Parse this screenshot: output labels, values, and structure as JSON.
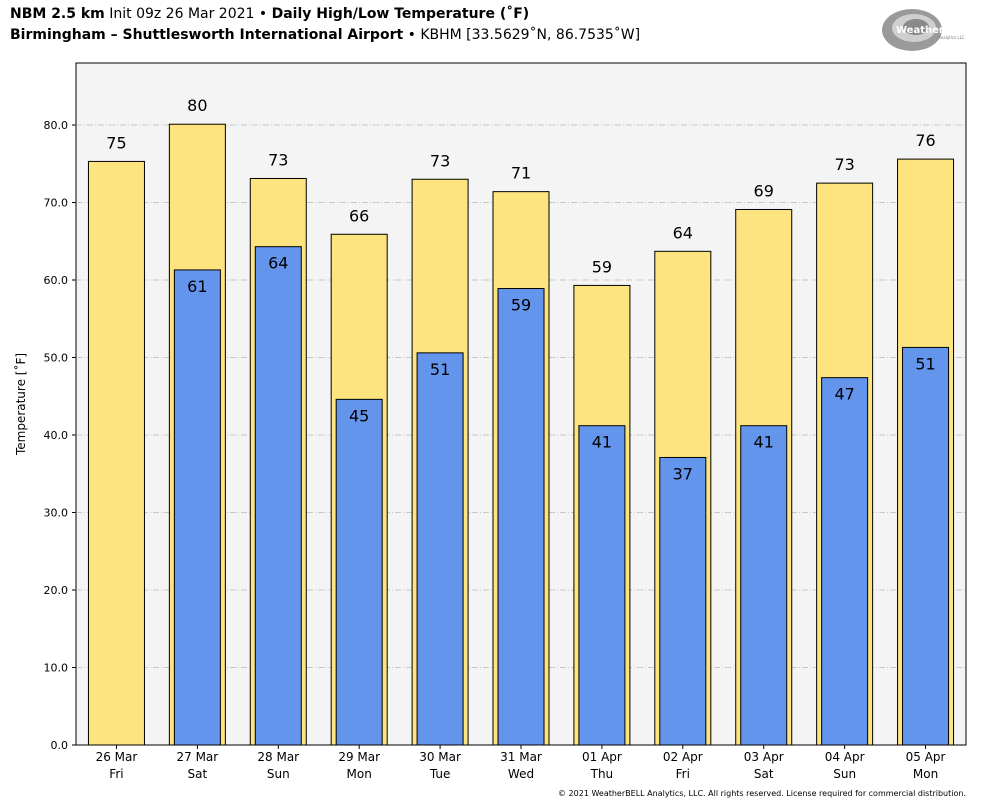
{
  "header": {
    "model": "NBM 2.5 km",
    "init": "Init 09z 26 Mar 2021",
    "sep": "•",
    "product": "Daily High/Low Temperature (˚F)",
    "location": "Birmingham – Shuttlesworth International Airport",
    "station": "KBHM [33.5629˚N, 86.7535˚W]"
  },
  "logo": {
    "text": "WeatherBELL",
    "subtext": "Analytics LLC"
  },
  "copyright": "© 2021 WeatherBELL Analytics, LLC. All rights reserved. License required for commercial distribution.",
  "colors": {
    "high": "#fde47f",
    "low": "#6495ed",
    "plot_bg": "#f4f4f4",
    "grid": "#b8b8b8"
  },
  "chart_data": {
    "type": "bar",
    "title": "Daily High/Low Temperature (˚F)",
    "ylabel": "Temperature [˚F]",
    "xlabel": "",
    "ylim": [
      0,
      88
    ],
    "yticks": [
      "0.0",
      "10.0",
      "20.0",
      "30.0",
      "40.0",
      "50.0",
      "60.0",
      "70.0",
      "80.0"
    ],
    "grid": true,
    "categories": [
      [
        "26 Mar",
        "Fri"
      ],
      [
        "27 Mar",
        "Sat"
      ],
      [
        "28 Mar",
        "Sun"
      ],
      [
        "29 Mar",
        "Mon"
      ],
      [
        "30 Mar",
        "Tue"
      ],
      [
        "31 Mar",
        "Wed"
      ],
      [
        "01 Apr",
        "Thu"
      ],
      [
        "02 Apr",
        "Fri"
      ],
      [
        "03 Apr",
        "Sat"
      ],
      [
        "04 Apr",
        "Sun"
      ],
      [
        "05 Apr",
        "Mon"
      ]
    ],
    "series": [
      {
        "key": "high",
        "values": [
          75.3,
          80.1,
          73.1,
          65.9,
          73.0,
          71.4,
          59.3,
          63.7,
          69.1,
          72.5,
          75.6
        ],
        "labels": [
          "75",
          "80",
          "73",
          "66",
          "73",
          "71",
          "59",
          "64",
          "69",
          "73",
          "76"
        ]
      },
      {
        "key": "low",
        "values": [
          null,
          61.3,
          64.3,
          44.6,
          50.6,
          58.9,
          41.2,
          37.1,
          41.2,
          47.4,
          51.3
        ],
        "labels": [
          "",
          "61",
          "64",
          "45",
          "51",
          "59",
          "41",
          "37",
          "41",
          "47",
          "51"
        ]
      }
    ]
  }
}
